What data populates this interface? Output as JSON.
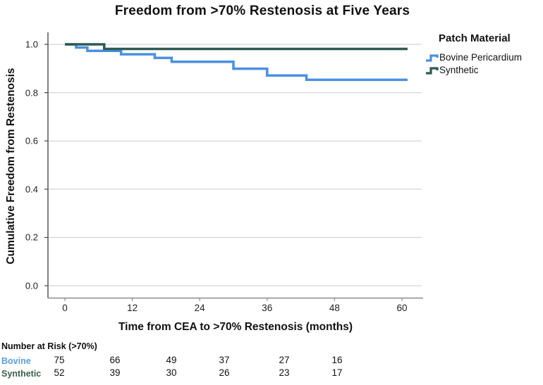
{
  "title": "Freedom from >70% Restenosis at Five Years",
  "chart_data": {
    "type": "line",
    "subtype": "kaplan-meier-step",
    "title": "Freedom from >70% Restenosis at Five Years",
    "xlabel": "Time from CEA to >70% Restenosis (months)",
    "ylabel": "Cumulative Freedom from Restenosis",
    "x_ticks": [
      0,
      12,
      24,
      36,
      48,
      60
    ],
    "y_ticks": [
      "1.0",
      "0.8",
      "0.6",
      "0.4",
      "0.2",
      "0.0"
    ],
    "xlim": [
      0,
      61
    ],
    "ylim": [
      0.0,
      1.0
    ],
    "grid": "horizontal",
    "legend_title": "Patch Material",
    "legend_position": "right",
    "series": [
      {
        "name": "Bovine Pericardium",
        "color": "#4a90e0",
        "points": [
          [
            0,
            1.0
          ],
          [
            2,
            0.987
          ],
          [
            4,
            0.973
          ],
          [
            10,
            0.959
          ],
          [
            16,
            0.944
          ],
          [
            19,
            0.928
          ],
          [
            30,
            0.899
          ],
          [
            36,
            0.871
          ],
          [
            43,
            0.853
          ],
          [
            61,
            0.853
          ]
        ]
      },
      {
        "name": "Synthetic",
        "color": "#2d5a52",
        "points": [
          [
            0,
            1.0
          ],
          [
            7,
            0.981
          ],
          [
            61,
            0.981
          ]
        ]
      }
    ]
  },
  "risk_table": {
    "header": "Number at Risk (>70%)",
    "rows": [
      {
        "label": "Bovine",
        "label_color": "#55a0e6",
        "values": [
          "75",
          "66",
          "49",
          "37",
          "27",
          "16"
        ]
      },
      {
        "label": "Synthetic",
        "label_color": "#3b5f48",
        "values": [
          "52",
          "39",
          "30",
          "26",
          "23",
          "17"
        ]
      }
    ]
  },
  "colors": {
    "grid_line": "#cbcbcb",
    "y_axis_line": "#4a4a4a",
    "x_axis_line": "#8a8a8a",
    "text": "#111111"
  }
}
